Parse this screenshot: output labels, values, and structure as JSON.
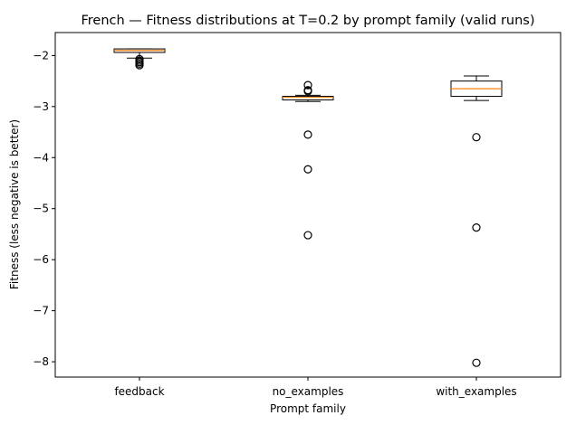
{
  "chart_data": {
    "type": "box",
    "title": "French — Fitness distributions at T=0.2 by prompt family (valid runs)",
    "xlabel": "Prompt family",
    "ylabel": "Fitness (less negative is better)",
    "categories": [
      "feedback",
      "no_examples",
      "with_examples"
    ],
    "ylim": [
      -8.3,
      -1.55
    ],
    "yticks": [
      -2,
      -3,
      -4,
      -5,
      -6,
      -7,
      -8
    ],
    "ytick_labels": [
      "−2",
      "−3",
      "−4",
      "−5",
      "−6",
      "−7",
      "−8"
    ],
    "grid": false,
    "legend": "none",
    "boxes": [
      {
        "category": "feedback",
        "whisker_low": -2.05,
        "q1": -1.94,
        "median": -1.9,
        "q3": -1.87,
        "whisker_high": -1.87,
        "outliers": [
          -2.07,
          -2.1,
          -2.13,
          -2.16,
          -2.19
        ]
      },
      {
        "category": "no_examples",
        "whisker_low": -2.9,
        "q1": -2.87,
        "median": -2.82,
        "q3": -2.8,
        "whisker_high": -2.78,
        "outliers": [
          -2.58,
          -2.68,
          -2.7,
          -3.55,
          -4.23,
          -5.52
        ]
      },
      {
        "category": "with_examples",
        "whisker_low": -2.88,
        "q1": -2.8,
        "median": -2.65,
        "q3": -2.5,
        "whisker_high": -2.4,
        "outliers": [
          -3.6,
          -5.37,
          -8.02
        ]
      }
    ],
    "colors": {
      "box": "#000000",
      "median": "#ff7f0e",
      "outlier": "#000000"
    }
  }
}
